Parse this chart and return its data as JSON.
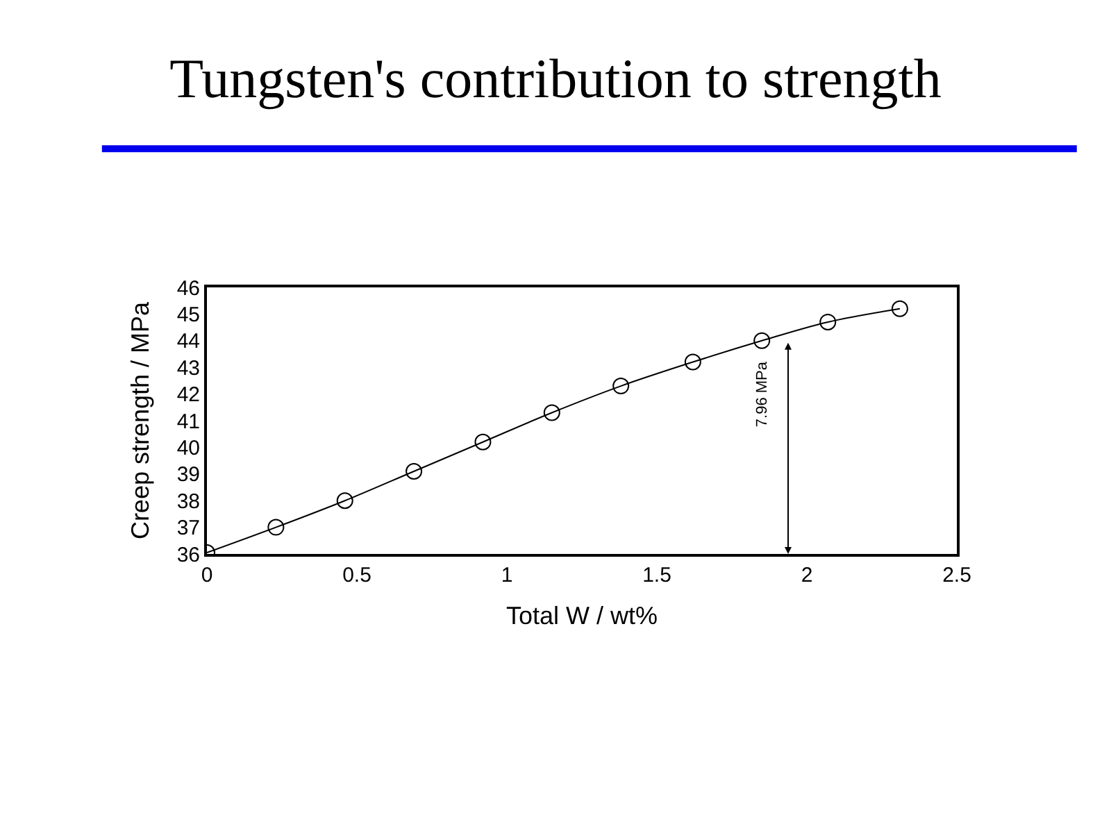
{
  "chart_data": {
    "type": "line",
    "title": "Tungsten's contribution to strength",
    "xlabel": "Total W / wt%",
    "ylabel": "Creep strength / MPa",
    "x": [
      0,
      0.23,
      0.46,
      0.69,
      0.92,
      1.15,
      1.38,
      1.62,
      1.85,
      2.07,
      2.31
    ],
    "series": [
      {
        "color": "#000000",
        "values": [
          36.05,
          37.0,
          38.0,
          39.1,
          40.2,
          41.3,
          42.3,
          43.2,
          44.0,
          44.7,
          45.2
        ]
      }
    ],
    "xlim": [
      0,
      2.5
    ],
    "ylim": [
      36,
      46
    ],
    "xticks": [
      0,
      0.5,
      1,
      1.5,
      2,
      2.5
    ],
    "yticks": [
      36,
      37,
      38,
      39,
      40,
      41,
      42,
      43,
      44,
      45,
      46
    ],
    "annotations": [
      "7.96 MPa"
    ],
    "marker": "circle",
    "line_style": "solid"
  }
}
